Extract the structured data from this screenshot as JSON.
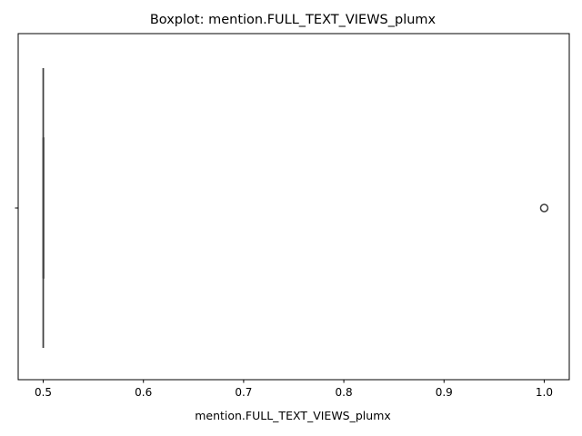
{
  "chart_data": {
    "type": "boxplot",
    "title": "Boxplot: mention.FULL_TEXT_VIEWS_plumx",
    "xlabel": "mention.FULL_TEXT_VIEWS_plumx",
    "ylabel": "",
    "orientation": "horizontal",
    "xlim": [
      0.475,
      1.025
    ],
    "xticks": [
      0.5,
      0.6,
      0.7,
      0.8,
      0.9,
      1.0
    ],
    "xtick_labels": [
      "0.5",
      "0.6",
      "0.7",
      "0.8",
      "0.9",
      "1.0"
    ],
    "box": {
      "whisker_low": 0.5,
      "q1": 0.5,
      "median": 0.5,
      "q3": 0.5,
      "whisker_high": 0.5
    },
    "outliers": [
      1.0
    ],
    "grid": false,
    "colors": {
      "box_line": "#3f3f3f",
      "outlier": "#3f3f3f",
      "axes": "#000000"
    }
  }
}
